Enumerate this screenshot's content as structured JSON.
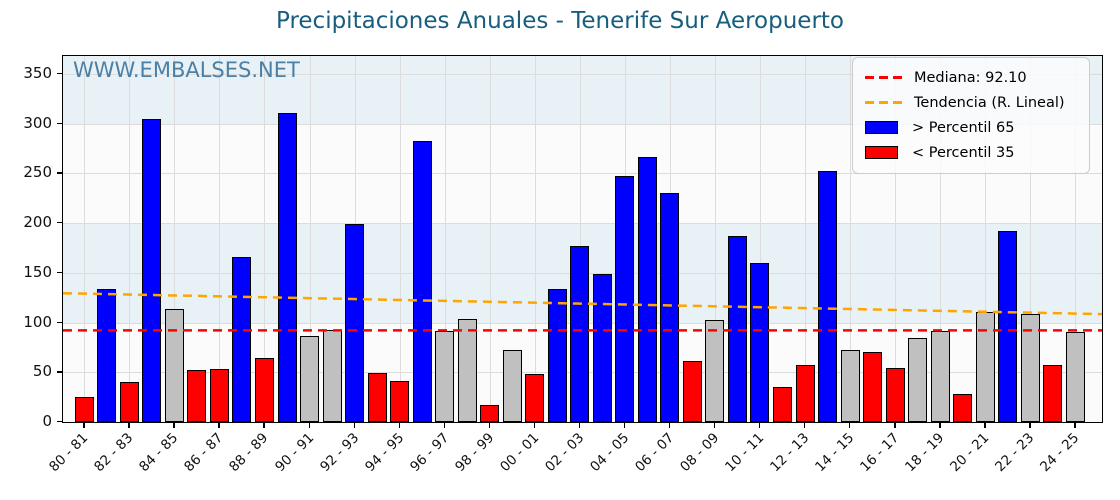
{
  "title": "Precipitaciones Anuales - Tenerife Sur Aeropuerto",
  "watermark": "WWW.EMBALSES.NET",
  "legend": {
    "median_label": "Mediana: 92.10",
    "trend_label": "Tendencia (R. Lineal)",
    "above_label": "> Percentil 65",
    "below_label": "< Percentil 35"
  },
  "colors": {
    "above": "#0000ff",
    "below": "#ff0000",
    "mid": "#c0c0c0",
    "median_line": "#ff0000",
    "trend_line": "#ffa500",
    "title": "#175e7e",
    "watermark": "#4a80a6",
    "stripe_light": "#fbfbfb",
    "stripe_blue": "#e8f1f6",
    "gridline": "#dcdcdc"
  },
  "chart_data": {
    "type": "bar",
    "title": "Precipitaciones Anuales - Tenerife Sur Aeropuerto",
    "ylabel": "",
    "xlabel": "",
    "values": [
      25,
      134,
      40,
      305,
      114,
      52,
      53,
      166,
      64,
      311,
      86,
      93,
      199,
      49,
      41,
      283,
      92,
      104,
      17,
      72,
      48,
      134,
      177,
      149,
      247,
      266,
      230,
      61,
      103,
      187,
      160,
      35,
      57,
      252,
      72,
      70,
      54,
      84,
      92,
      28,
      111,
      192,
      109,
      57,
      91
    ],
    "bar_classes": [
      "below",
      "above",
      "below",
      "above",
      "mid",
      "below",
      "below",
      "above",
      "below",
      "above",
      "mid",
      "mid",
      "above",
      "below",
      "below",
      "above",
      "mid",
      "mid",
      "below",
      "mid",
      "below",
      "above",
      "above",
      "above",
      "above",
      "above",
      "above",
      "below",
      "mid",
      "above",
      "above",
      "below",
      "below",
      "above",
      "mid",
      "below",
      "below",
      "mid",
      "mid",
      "below",
      "mid",
      "above",
      "mid",
      "below",
      "mid"
    ],
    "xtick_labels": [
      "80 - 81",
      "82 - 83",
      "84 - 85",
      "86 - 87",
      "88 - 89",
      "90 - 91",
      "92 - 93",
      "94 - 95",
      "96 - 97",
      "98 - 99",
      "00 - 01",
      "02 - 03",
      "04 - 05",
      "06 - 07",
      "08 - 09",
      "10 - 11",
      "12 - 13",
      "14 - 15",
      "16 - 17",
      "18 - 19",
      "20 - 21",
      "22 - 23",
      "24 - 25"
    ],
    "xticks_every": 2,
    "yticks": [
      0,
      50,
      100,
      150,
      200,
      250,
      300,
      350
    ],
    "ylim": [
      0,
      368
    ],
    "median": 92.1,
    "trend": {
      "start": 129.5,
      "end": 108.5
    },
    "stripe_band_size": 100,
    "grid": true,
    "legend_position": "upper right"
  }
}
